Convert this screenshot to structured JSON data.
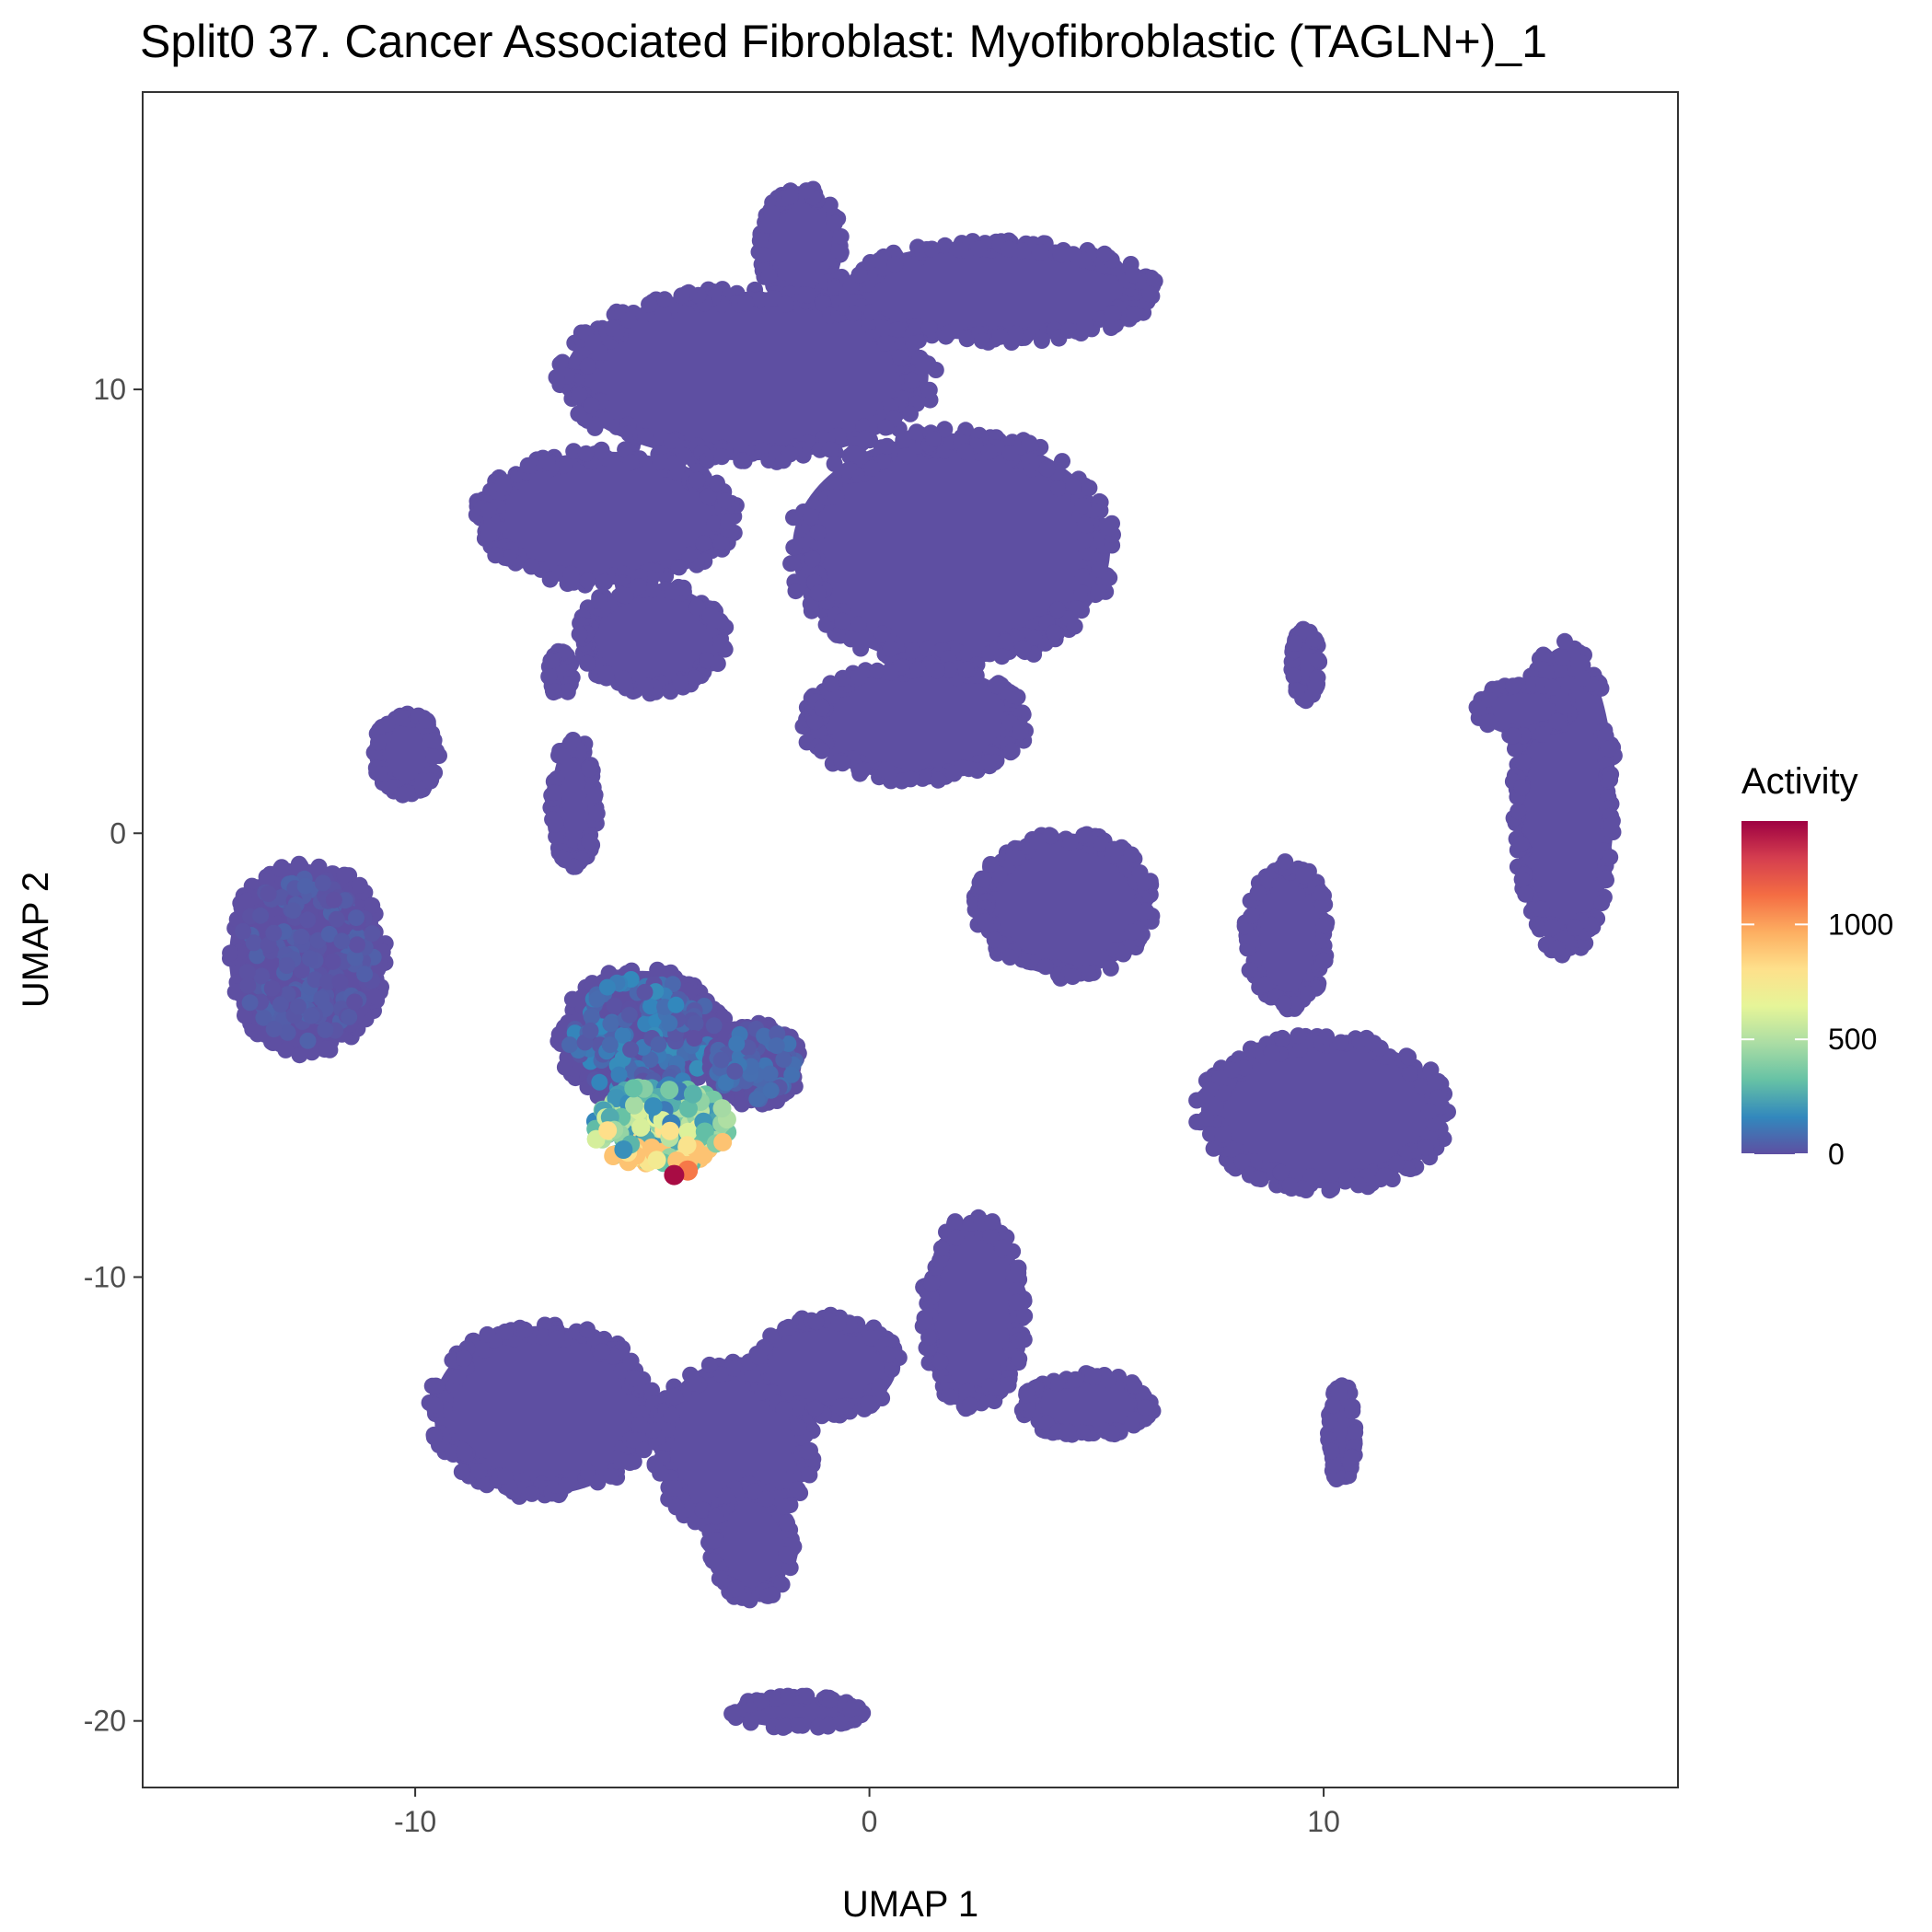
{
  "chart_data": {
    "type": "scatter",
    "title": "Split0 37. Cancer Associated Fibroblast: Myofibroblastic (TAGLN+)_1",
    "xlabel": "UMAP 1",
    "ylabel": "UMAP 2",
    "xlim": [
      -16,
      17.8
    ],
    "ylim": [
      -21.5,
      16.7
    ],
    "x_ticks": [
      -10,
      0,
      10
    ],
    "y_ticks": [
      -20,
      -10,
      0,
      10
    ],
    "x_tick_labels": [
      "-10",
      "0",
      "10"
    ],
    "y_tick_labels": [
      "-20",
      "-10",
      "0",
      "10"
    ],
    "grid": false,
    "legend": {
      "title": "Activity",
      "placement": "right",
      "ticks": [
        0,
        500,
        1000
      ],
      "tick_labels": [
        "0",
        "500",
        "1000"
      ],
      "range": [
        0,
        1450
      ],
      "colors": [
        "#5E4FA2",
        "#3288BD",
        "#66C2A5",
        "#ABDDA4",
        "#E6F598",
        "#FEE08B",
        "#FDAE61",
        "#F46D43",
        "#D53E4F",
        "#9E0142"
      ]
    },
    "clusters": [
      {
        "cx": -1.5,
        "cy": 13.2,
        "rx": 0.9,
        "ry": 1.3,
        "value": 0
      },
      {
        "cx": -2.7,
        "cy": 10.3,
        "rx": 4.0,
        "ry": 1.9,
        "value": 0
      },
      {
        "cx": -5.8,
        "cy": 7.1,
        "rx": 2.8,
        "ry": 1.5,
        "value": 0
      },
      {
        "cx": -4.8,
        "cy": 4.4,
        "rx": 1.6,
        "ry": 1.2,
        "value": 0
      },
      {
        "cx": 1.8,
        "cy": 6.4,
        "rx": 3.5,
        "ry": 2.6,
        "value": 0
      },
      {
        "cx": 1.0,
        "cy": 2.5,
        "rx": 2.4,
        "ry": 1.3,
        "value": 0
      },
      {
        "cx": 2.8,
        "cy": 12.2,
        "rx": 3.4,
        "ry": 1.1,
        "value": 0
      },
      {
        "cx": 4.3,
        "cy": -1.6,
        "rx": 1.9,
        "ry": 1.6,
        "value": 0
      },
      {
        "cx": 15.3,
        "cy": 0.8,
        "rx": 1.1,
        "ry": 3.4,
        "value": 0
      },
      {
        "cx": 14.4,
        "cy": 2.8,
        "rx": 1.0,
        "ry": 0.6,
        "value": 0
      },
      {
        "cx": 10.0,
        "cy": -6.3,
        "rx": 2.7,
        "ry": 1.7,
        "value": 0
      },
      {
        "cx": 9.2,
        "cy": -2.3,
        "rx": 0.9,
        "ry": 1.6,
        "value": 0
      },
      {
        "cx": -12.4,
        "cy": -2.8,
        "rx": 1.7,
        "ry": 2.1,
        "value": 20
      },
      {
        "cx": -7.2,
        "cy": -13.0,
        "rx": 2.4,
        "ry": 1.9,
        "value": 0
      },
      {
        "cx": -3.0,
        "cy": -13.8,
        "rx": 1.7,
        "ry": 1.9,
        "value": 0
      },
      {
        "cx": -2.6,
        "cy": -16.0,
        "rx": 0.9,
        "ry": 1.3,
        "value": 0
      },
      {
        "cx": 2.3,
        "cy": -10.8,
        "rx": 1.1,
        "ry": 2.1,
        "value": 0
      },
      {
        "cx": 4.8,
        "cy": -12.9,
        "rx": 1.4,
        "ry": 0.7,
        "value": 0
      },
      {
        "cx": -1.0,
        "cy": -12.0,
        "rx": 1.6,
        "ry": 1.1,
        "value": 0
      },
      {
        "cx": -1.6,
        "cy": -19.8,
        "rx": 1.4,
        "ry": 0.35,
        "value": 0
      },
      {
        "cx": -10.2,
        "cy": 1.8,
        "rx": 0.7,
        "ry": 0.9,
        "value": 0
      },
      {
        "cx": -6.8,
        "cy": 3.6,
        "rx": 0.25,
        "ry": 0.5,
        "value": 0
      },
      {
        "cx": -6.5,
        "cy": 0.7,
        "rx": 0.5,
        "ry": 1.4,
        "value": 0
      },
      {
        "cx": 9.6,
        "cy": 3.8,
        "rx": 0.3,
        "ry": 0.8,
        "value": 0
      },
      {
        "cx": 10.4,
        "cy": -13.5,
        "rx": 0.3,
        "ry": 1.1,
        "value": 0
      },
      {
        "cx": -5.0,
        "cy": -4.6,
        "rx": 1.8,
        "ry": 1.5,
        "value": 60
      },
      {
        "cx": -2.5,
        "cy": -5.2,
        "rx": 1.0,
        "ry": 0.9,
        "value": 40
      }
    ],
    "hotspot": {
      "cx": -4.6,
      "cy": -6.6,
      "rx": 1.5,
      "ry": 0.95,
      "max_value": 1420
    }
  }
}
